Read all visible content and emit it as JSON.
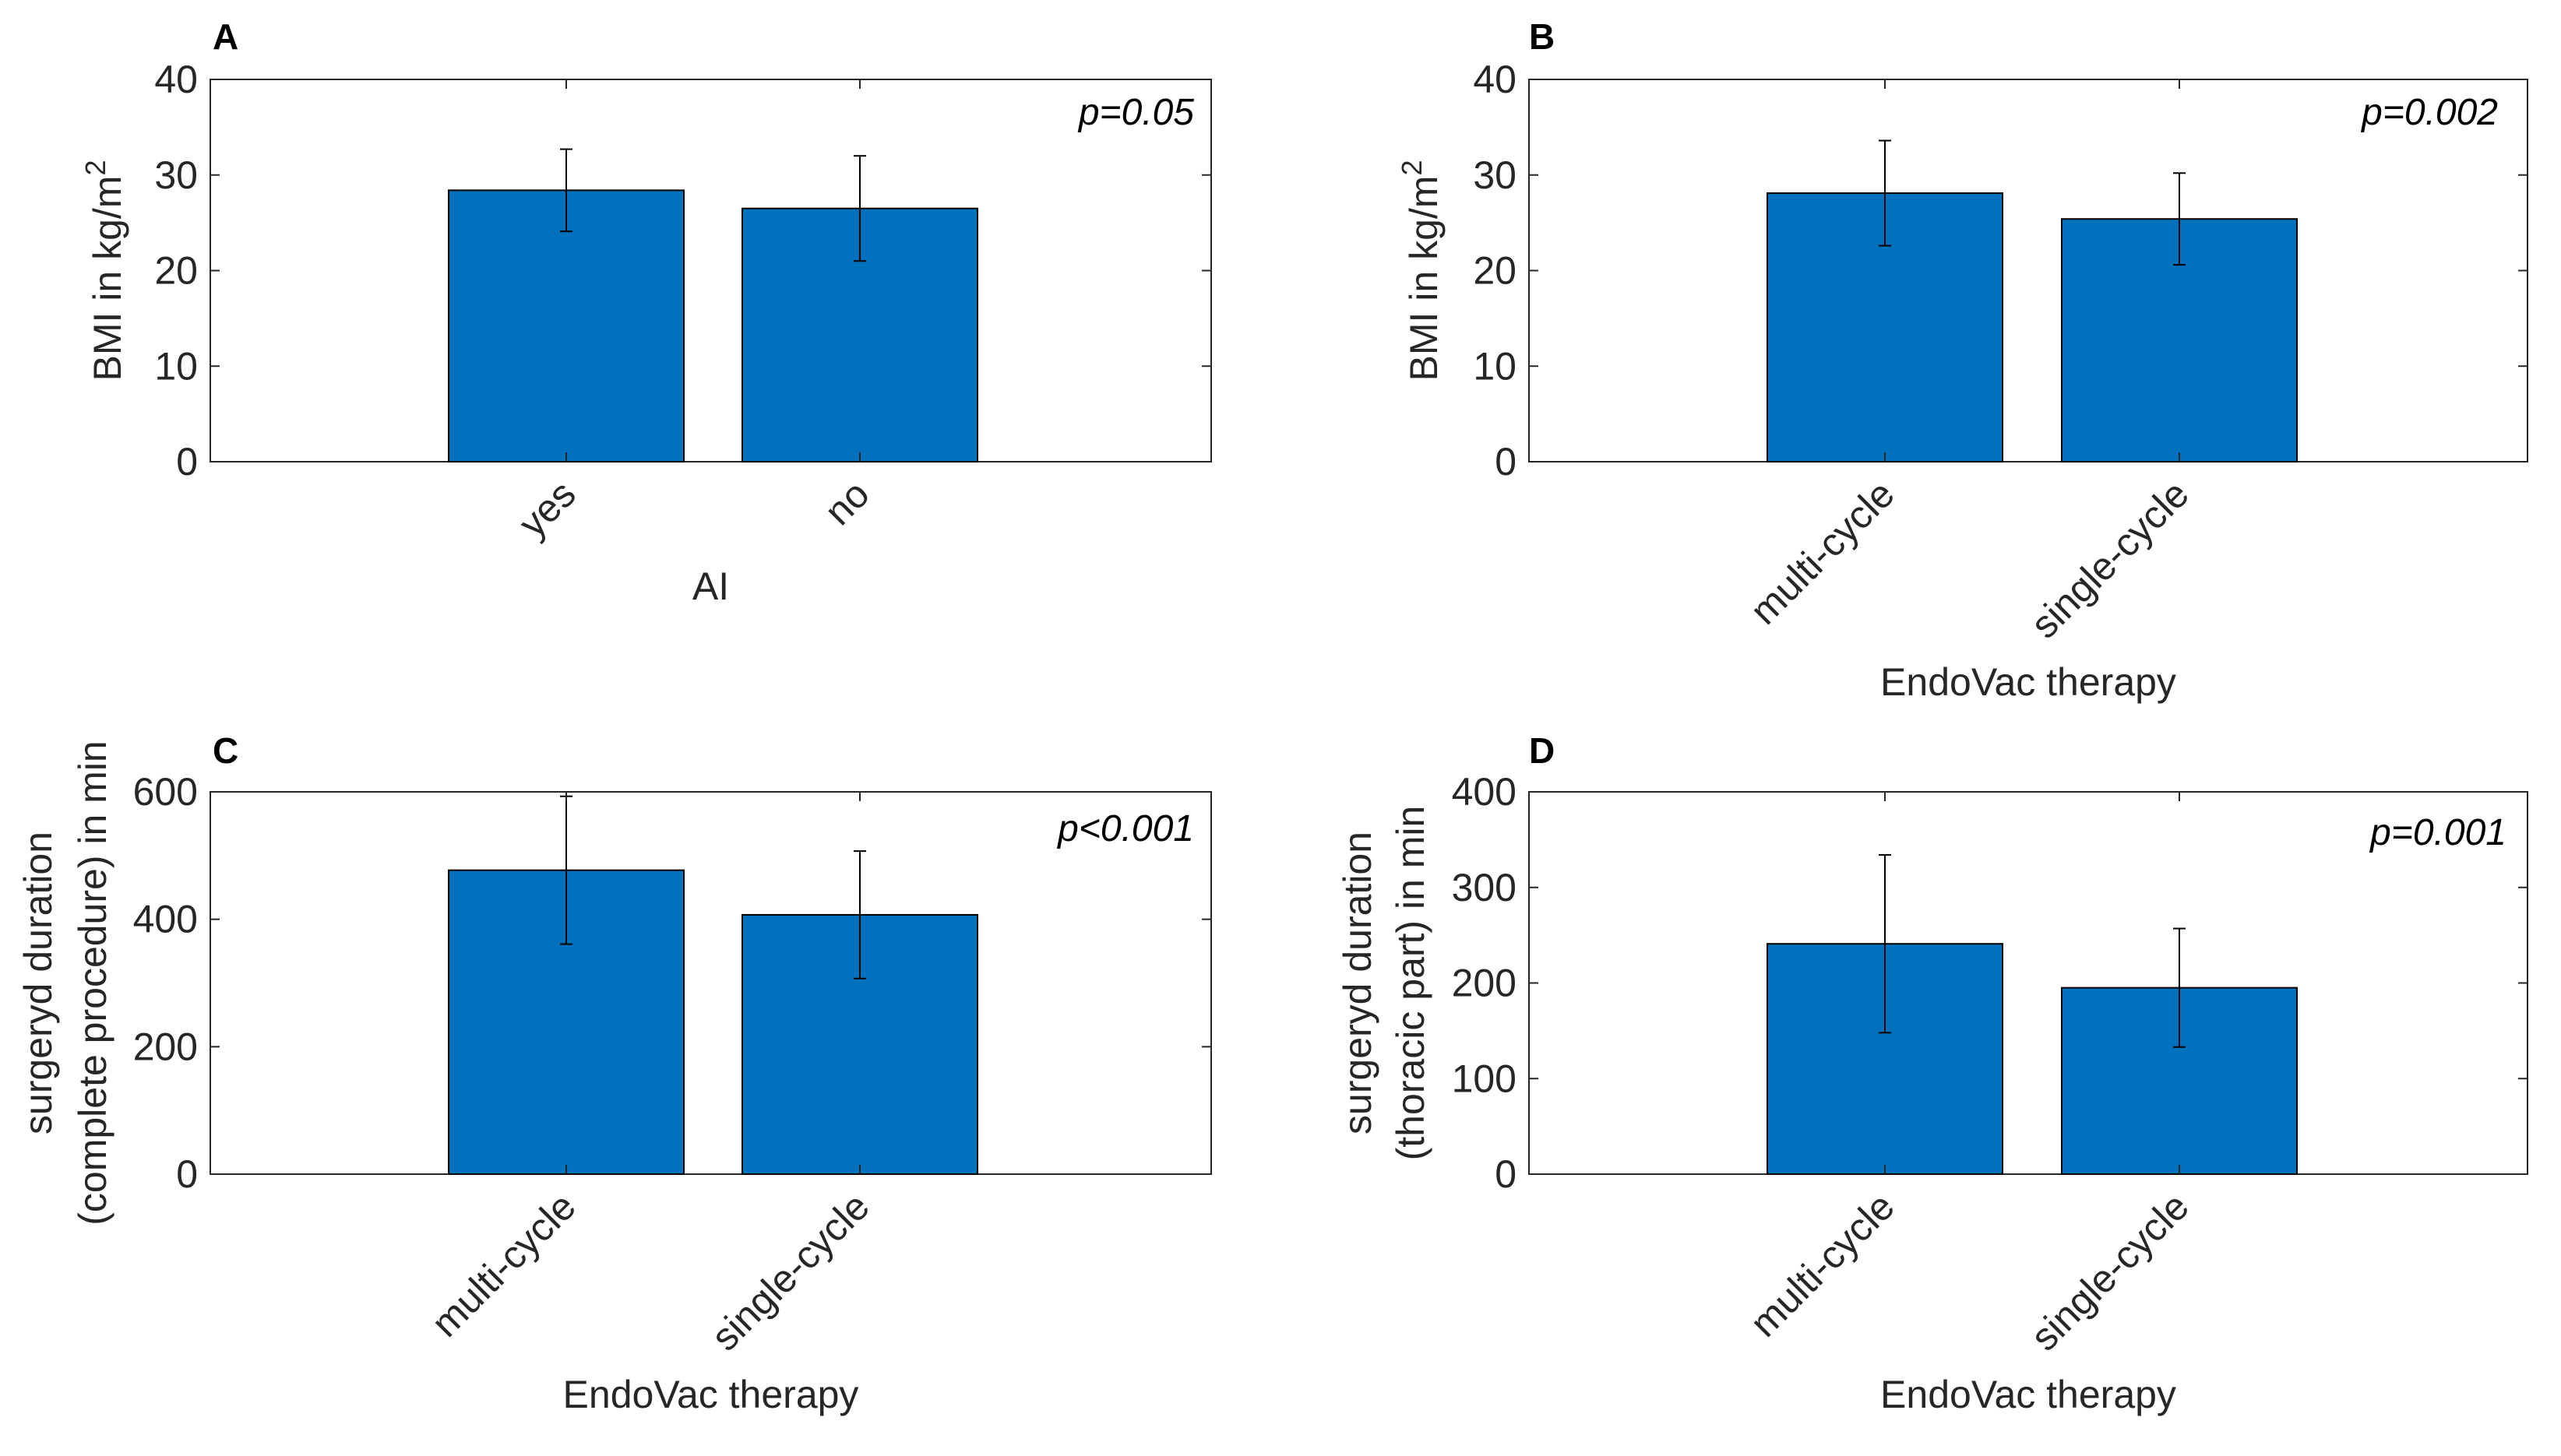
{
  "colors": {
    "bar": "#0072BD",
    "bar_edge": "#000000",
    "axis": "#262626",
    "error": "#000000"
  },
  "chart_data": [
    {
      "panel": "A",
      "type": "bar",
      "categories": [
        "yes",
        "no"
      ],
      "values": [
        28.4,
        26.5
      ],
      "errors": [
        4.3,
        5.5
      ],
      "xlabel": "AI",
      "ylabel_main": "BMI in kg/m",
      "ylabel_sup": "2",
      "ylim": [
        0,
        40
      ],
      "yticks": [
        "0",
        "10",
        "20",
        "30",
        "40"
      ],
      "ytick_values": [
        0,
        10,
        20,
        30,
        40
      ],
      "pvalue": "p=0.05"
    },
    {
      "panel": "B",
      "type": "bar",
      "categories": [
        "multi-cycle",
        "single-cycle"
      ],
      "values": [
        28.1,
        25.4
      ],
      "errors": [
        5.5,
        4.8
      ],
      "xlabel": "EndoVac therapy",
      "ylabel_main": "BMI in kg/m",
      "ylabel_sup": "2",
      "ylim": [
        0,
        40
      ],
      "yticks": [
        "0",
        "10",
        "20",
        "30",
        "40"
      ],
      "ytick_values": [
        0,
        10,
        20,
        30,
        40
      ],
      "pvalue": "p=0.002"
    },
    {
      "panel": "C",
      "type": "bar",
      "categories": [
        "multi-cycle",
        "single-cycle"
      ],
      "values": [
        477,
        407
      ],
      "errors": [
        116,
        100
      ],
      "xlabel": "EndoVac therapy",
      "ylabel_lines": [
        "surgeryd duration",
        "(complete procedure) in min"
      ],
      "ylim": [
        0,
        600
      ],
      "yticks": [
        "0",
        "200",
        "400",
        "600"
      ],
      "ytick_values": [
        0,
        200,
        400,
        600
      ],
      "pvalue": "p<0.001"
    },
    {
      "panel": "D",
      "type": "bar",
      "categories": [
        "multi-cycle",
        "single-cycle"
      ],
      "values": [
        241,
        195
      ],
      "errors": [
        93,
        62
      ],
      "xlabel": "EndoVac therapy",
      "ylabel_lines": [
        "surgeryd duration",
        "(thoracic part) in min"
      ],
      "ylim": [
        0,
        400
      ],
      "yticks": [
        "0",
        "100",
        "200",
        "300",
        "400"
      ],
      "ytick_values": [
        0,
        100,
        200,
        300,
        400
      ],
      "pvalue": "p=0.001"
    }
  ]
}
